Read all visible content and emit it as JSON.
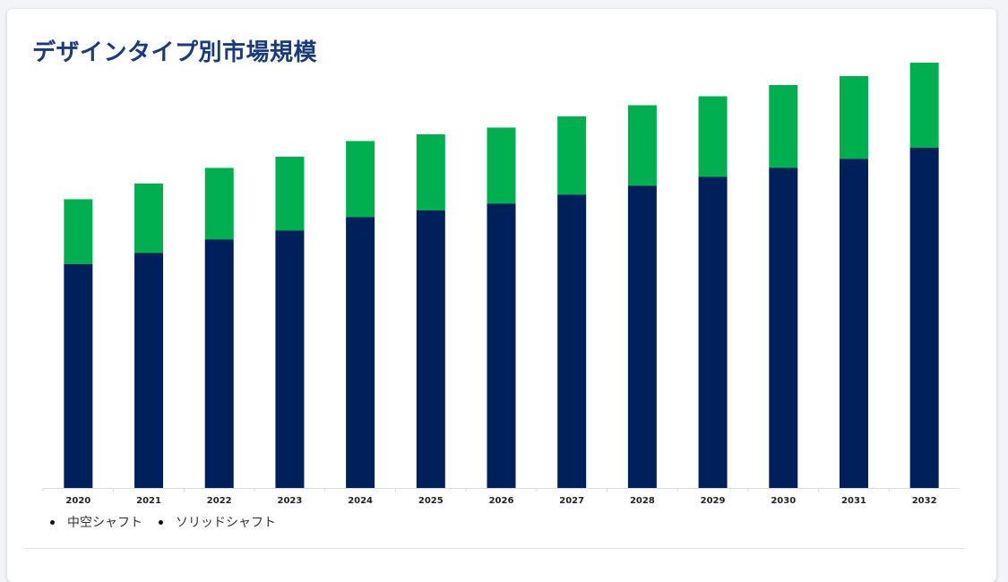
{
  "page": {
    "title": "デザインタイプ別市場規模"
  },
  "legend": {
    "items": [
      {
        "label": "中空シャフト",
        "color": "#00205b"
      },
      {
        "label": "ソリッドシャフト",
        "color": "#00b050"
      }
    ]
  },
  "chart_data": {
    "type": "bar",
    "stacked": true,
    "title": "デザインタイプ別市場規模",
    "xlabel": "",
    "ylabel": "",
    "categories": [
      "2020",
      "2021",
      "2022",
      "2023",
      "2024",
      "2025",
      "2026",
      "2027",
      "2028",
      "2029",
      "2030",
      "2031",
      "2032"
    ],
    "series": [
      {
        "name": "中空シャフト",
        "color": "#00205b",
        "values": [
          5.0,
          5.25,
          5.55,
          5.75,
          6.05,
          6.2,
          6.35,
          6.55,
          6.75,
          6.95,
          7.15,
          7.35,
          7.6
        ]
      },
      {
        "name": "ソリッドシャフト",
        "color": "#00b050",
        "values": [
          1.45,
          1.55,
          1.6,
          1.65,
          1.7,
          1.7,
          1.7,
          1.75,
          1.8,
          1.8,
          1.85,
          1.85,
          1.9
        ]
      }
    ],
    "ylim": [
      0,
      10
    ],
    "grid": false,
    "legend_position": "bottom-left"
  }
}
